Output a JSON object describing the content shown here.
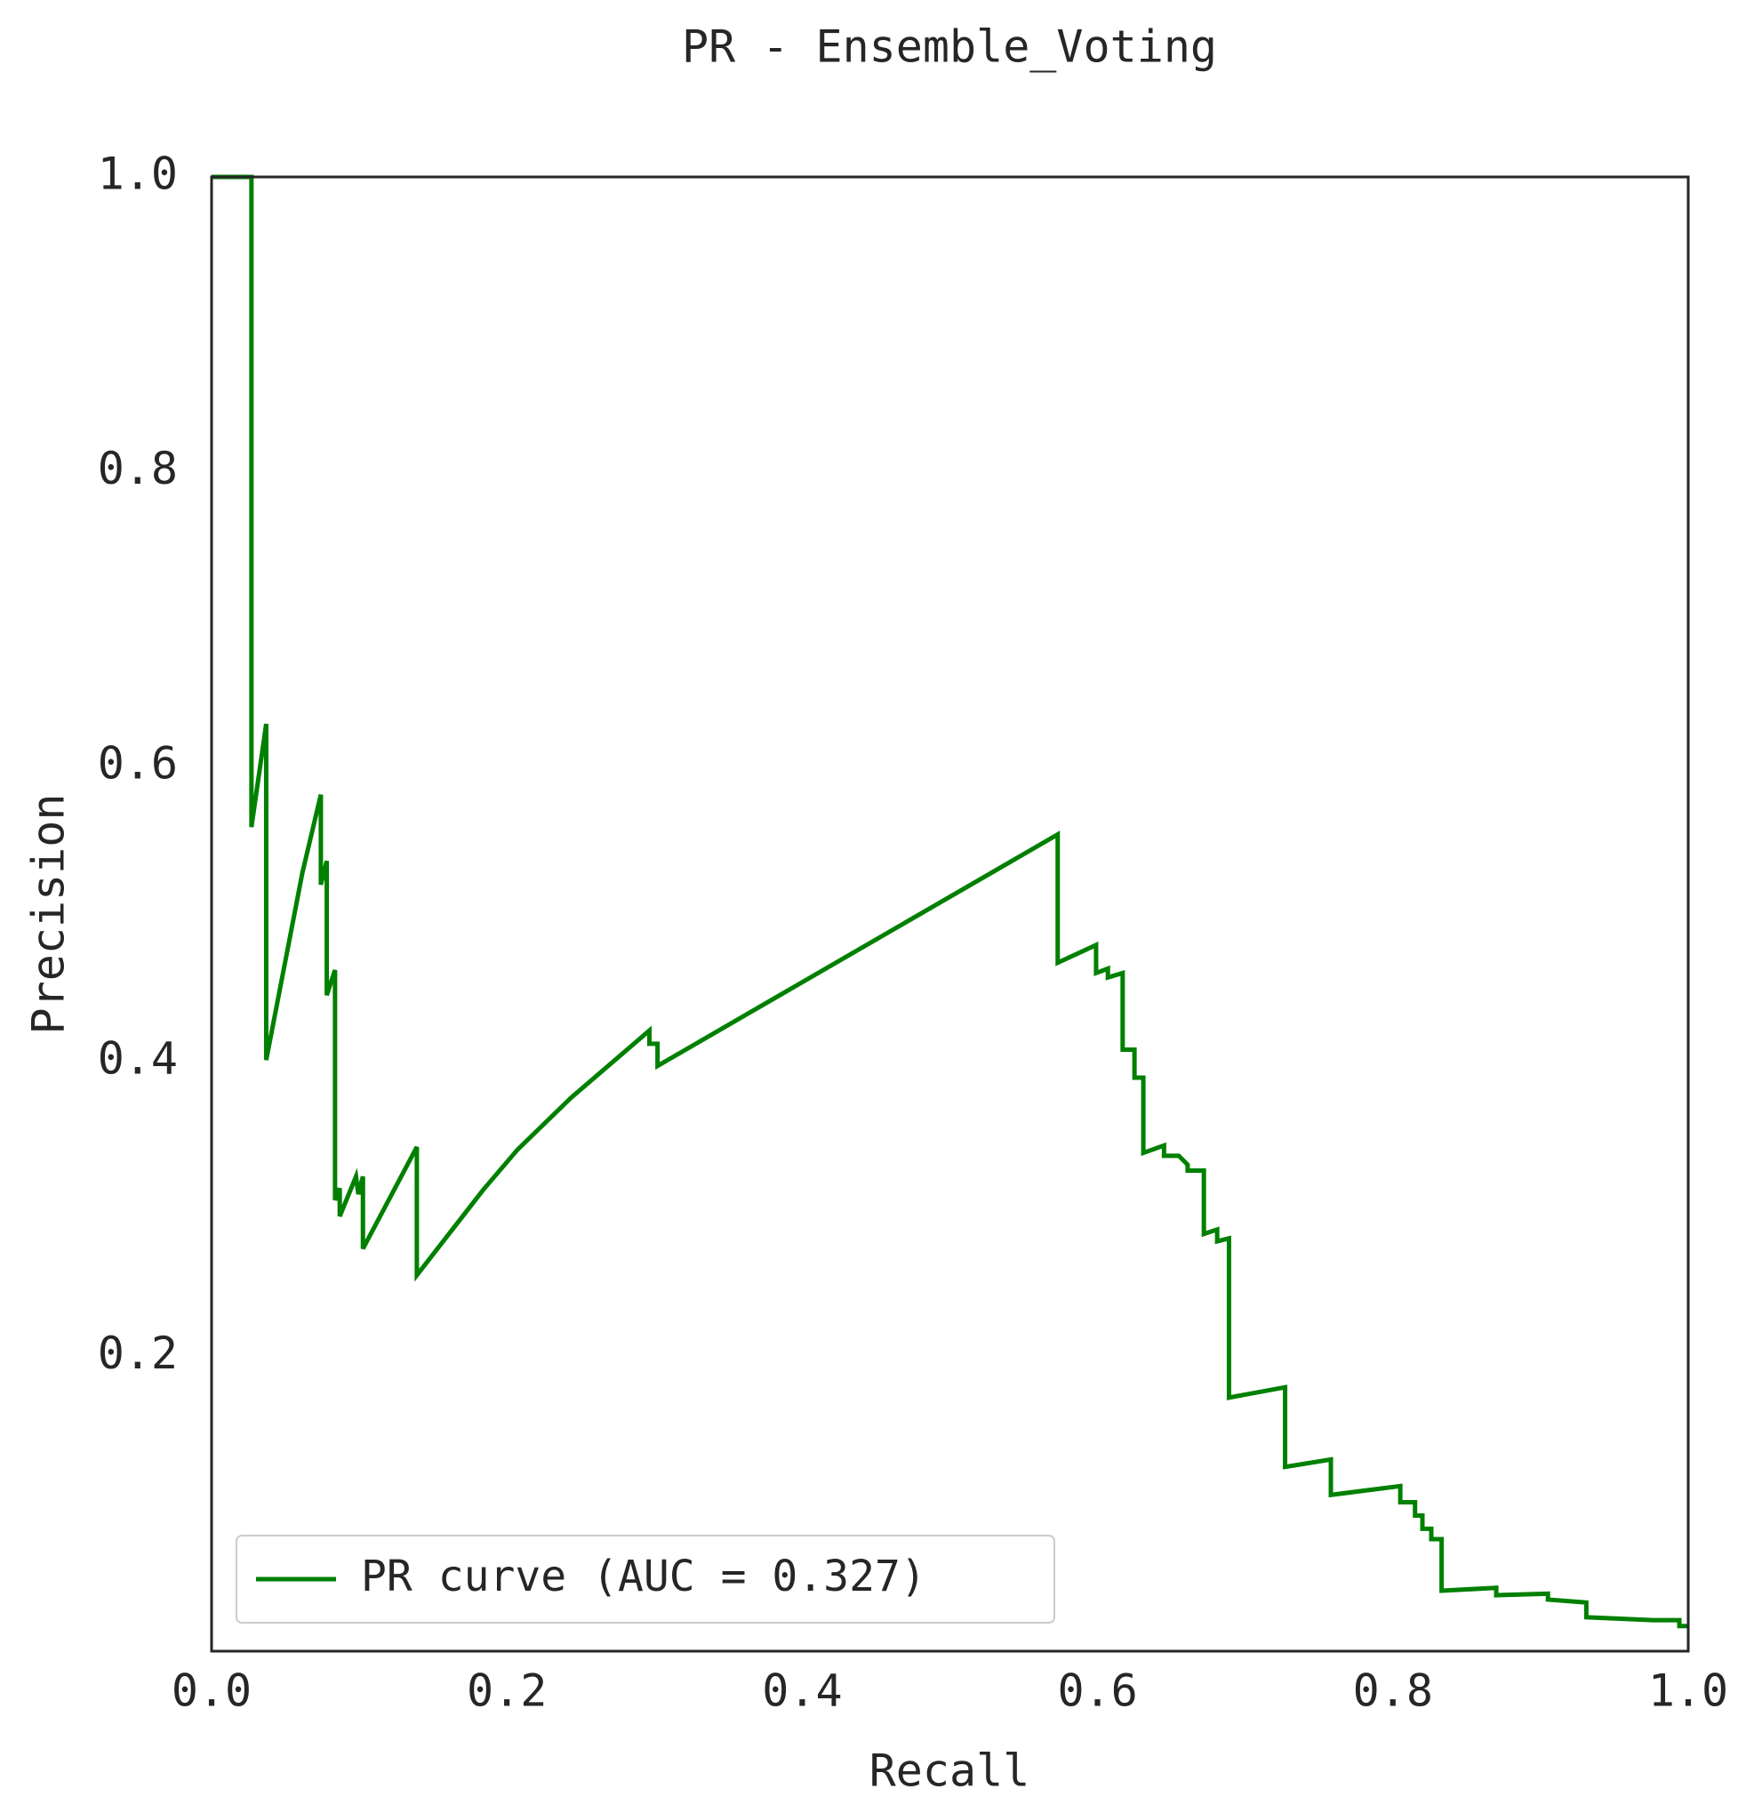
{
  "chart_data": {
    "type": "line",
    "title": "PR - Ensemble_Voting",
    "xlabel": "Recall",
    "ylabel": "Precision",
    "xlim": [
      0,
      1
    ],
    "ylim": [
      0,
      1
    ],
    "xticks": [
      {
        "value": 0,
        "label": "0.0"
      },
      0.2,
      0.4,
      0.6,
      0.8,
      {
        "value": 1,
        "label": "1.0"
      }
    ],
    "yticks": [
      0.2,
      0.4,
      0.6,
      0.8,
      {
        "value": 1,
        "label": "1.0"
      }
    ],
    "grid": false,
    "legend": "lower left",
    "series": [
      {
        "name": "PR curve (AUC = 0.327)",
        "color": "#008000",
        "x": [
          0,
          0.027,
          0.027,
          0.037,
          0.037,
          0.0615,
          0.074,
          0.074,
          0.078,
          0.078,
          0.0836,
          0.0836,
          0.0868,
          0.0868,
          0.0978,
          0.0994,
          0.1025,
          0.1025,
          0.139,
          0.139,
          0.184,
          0.207,
          0.243,
          0.2965,
          0.2965,
          0.302,
          0.302,
          0.573,
          0.573,
          0.599,
          0.599,
          0.607,
          0.607,
          0.617,
          0.617,
          0.625,
          0.625,
          0.631,
          0.631,
          0.645,
          0.645,
          0.655,
          0.661,
          0.661,
          0.672,
          0.672,
          0.681,
          0.681,
          0.689,
          0.689,
          0.727,
          0.727,
          0.758,
          0.758,
          0.805,
          0.805,
          0.815,
          0.815,
          0.82,
          0.82,
          0.826,
          0.826,
          0.833,
          0.833,
          0.87,
          0.87,
          0.905,
          0.905,
          0.931,
          0.931,
          0.954,
          0.976,
          0.994,
          0.994,
          1
        ],
        "y": [
          1,
          1,
          0.559,
          0.629,
          0.401,
          0.528,
          0.581,
          0.52,
          0.536,
          0.445,
          0.462,
          0.306,
          0.314,
          0.295,
          0.322,
          0.31,
          0.322,
          0.273,
          0.342,
          0.255,
          0.313,
          0.34,
          0.375,
          0.421,
          0.412,
          0.412,
          0.397,
          0.554,
          0.467,
          0.479,
          0.46,
          0.463,
          0.457,
          0.46,
          0.408,
          0.408,
          0.389,
          0.389,
          0.338,
          0.343,
          0.336,
          0.336,
          0.33,
          0.326,
          0.326,
          0.283,
          0.286,
          0.278,
          0.28,
          0.172,
          0.179,
          0.125,
          0.13,
          0.106,
          0.112,
          0.101,
          0.101,
          0.092,
          0.092,
          0.083,
          0.083,
          0.076,
          0.076,
          0.041,
          0.043,
          0.038,
          0.039,
          0.035,
          0.033,
          0.023,
          0.022,
          0.021,
          0.021,
          0.017,
          0.017
        ]
      }
    ]
  }
}
